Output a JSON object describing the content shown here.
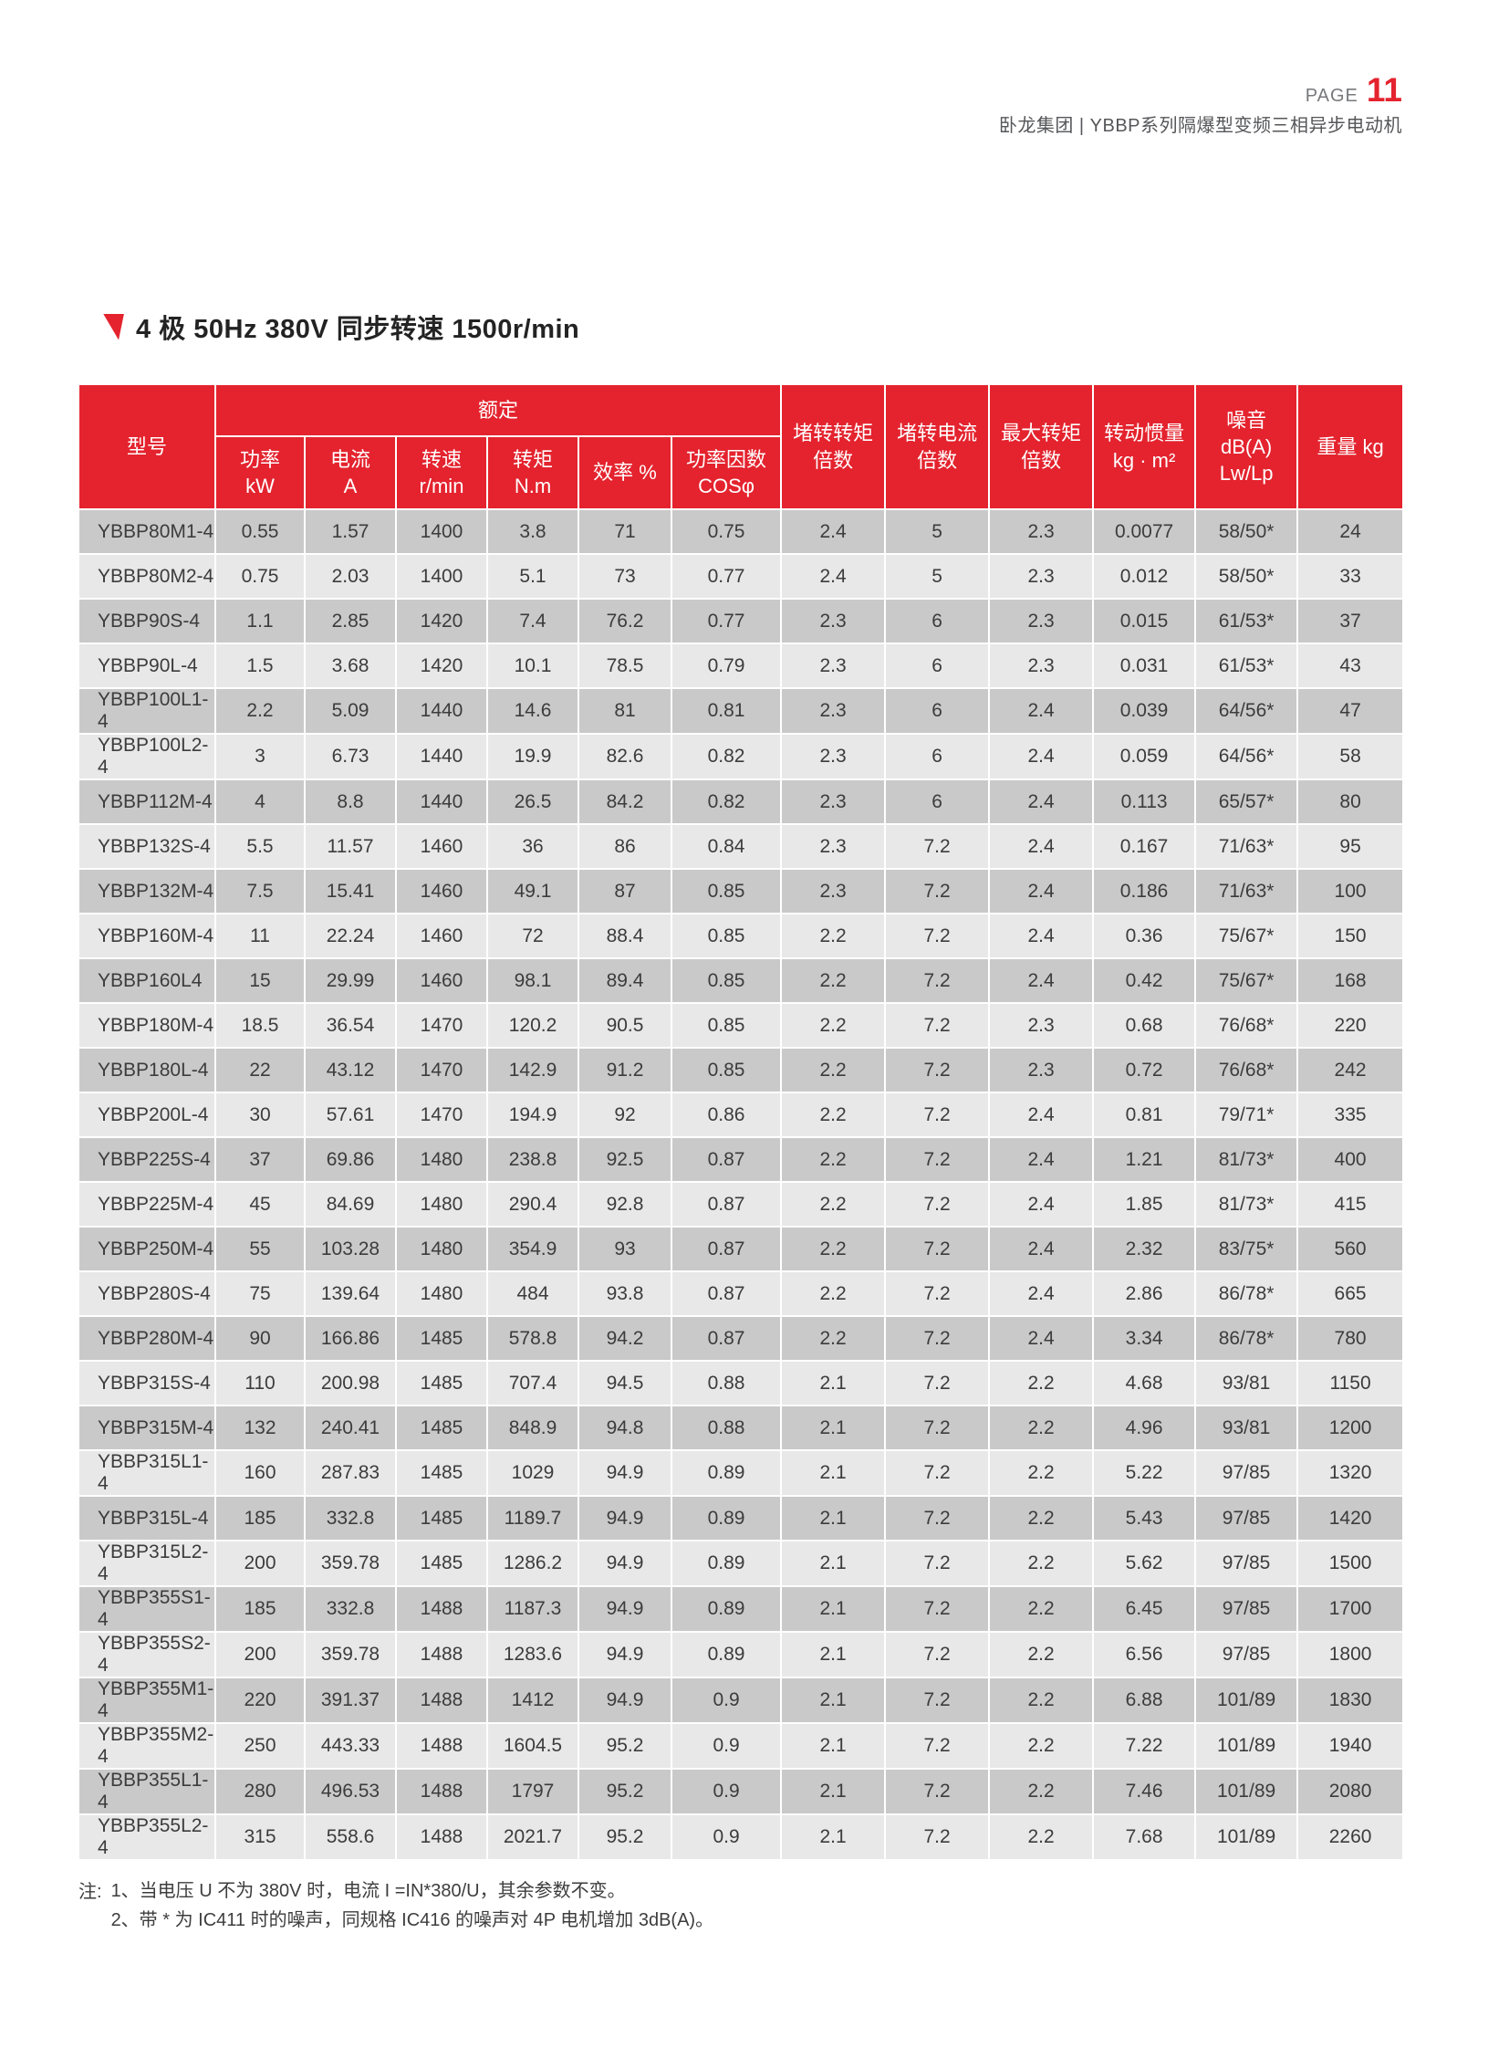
{
  "page_header": {
    "page_label": "PAGE",
    "page_number": "11",
    "subtitle": "卧龙集团 | YBBP系列隔爆型变频三相异步电动机"
  },
  "section_title": "4 极 50Hz 380V 同步转速 1500r/min",
  "table": {
    "header": {
      "model": "型号",
      "rated_group": "额定",
      "sub_headers": [
        "功率\nkW",
        "电流\nA",
        "转速\nr/min",
        "转矩\nN.m",
        "效率 %",
        "功率因数\nCOSφ"
      ],
      "span_headers": [
        "堵转转矩\n倍数",
        "堵转电流\n倍数",
        "最大转矩\n倍数",
        "转动惯量\nkg · m²",
        "噪音\ndB(A)\nLw/Lp",
        "重量 kg"
      ]
    },
    "rows": [
      [
        "YBBP80M1-4",
        "0.55",
        "1.57",
        "1400",
        "3.8",
        "71",
        "0.75",
        "2.4",
        "5",
        "2.3",
        "0.0077",
        "58/50*",
        "24"
      ],
      [
        "YBBP80M2-4",
        "0.75",
        "2.03",
        "1400",
        "5.1",
        "73",
        "0.77",
        "2.4",
        "5",
        "2.3",
        "0.012",
        "58/50*",
        "33"
      ],
      [
        "YBBP90S-4",
        "1.1",
        "2.85",
        "1420",
        "7.4",
        "76.2",
        "0.77",
        "2.3",
        "6",
        "2.3",
        "0.015",
        "61/53*",
        "37"
      ],
      [
        "YBBP90L-4",
        "1.5",
        "3.68",
        "1420",
        "10.1",
        "78.5",
        "0.79",
        "2.3",
        "6",
        "2.3",
        "0.031",
        "61/53*",
        "43"
      ],
      [
        "YBBP100L1-4",
        "2.2",
        "5.09",
        "1440",
        "14.6",
        "81",
        "0.81",
        "2.3",
        "6",
        "2.4",
        "0.039",
        "64/56*",
        "47"
      ],
      [
        "YBBP100L2-4",
        "3",
        "6.73",
        "1440",
        "19.9",
        "82.6",
        "0.82",
        "2.3",
        "6",
        "2.4",
        "0.059",
        "64/56*",
        "58"
      ],
      [
        "YBBP112M-4",
        "4",
        "8.8",
        "1440",
        "26.5",
        "84.2",
        "0.82",
        "2.3",
        "6",
        "2.4",
        "0.113",
        "65/57*",
        "80"
      ],
      [
        "YBBP132S-4",
        "5.5",
        "11.57",
        "1460",
        "36",
        "86",
        "0.84",
        "2.3",
        "7.2",
        "2.4",
        "0.167",
        "71/63*",
        "95"
      ],
      [
        "YBBP132M-4",
        "7.5",
        "15.41",
        "1460",
        "49.1",
        "87",
        "0.85",
        "2.3",
        "7.2",
        "2.4",
        "0.186",
        "71/63*",
        "100"
      ],
      [
        "YBBP160M-4",
        "11",
        "22.24",
        "1460",
        "72",
        "88.4",
        "0.85",
        "2.2",
        "7.2",
        "2.4",
        "0.36",
        "75/67*",
        "150"
      ],
      [
        "YBBP160L4",
        "15",
        "29.99",
        "1460",
        "98.1",
        "89.4",
        "0.85",
        "2.2",
        "7.2",
        "2.4",
        "0.42",
        "75/67*",
        "168"
      ],
      [
        "YBBP180M-4",
        "18.5",
        "36.54",
        "1470",
        "120.2",
        "90.5",
        "0.85",
        "2.2",
        "7.2",
        "2.3",
        "0.68",
        "76/68*",
        "220"
      ],
      [
        "YBBP180L-4",
        "22",
        "43.12",
        "1470",
        "142.9",
        "91.2",
        "0.85",
        "2.2",
        "7.2",
        "2.3",
        "0.72",
        "76/68*",
        "242"
      ],
      [
        "YBBP200L-4",
        "30",
        "57.61",
        "1470",
        "194.9",
        "92",
        "0.86",
        "2.2",
        "7.2",
        "2.4",
        "0.81",
        "79/71*",
        "335"
      ],
      [
        "YBBP225S-4",
        "37",
        "69.86",
        "1480",
        "238.8",
        "92.5",
        "0.87",
        "2.2",
        "7.2",
        "2.4",
        "1.21",
        "81/73*",
        "400"
      ],
      [
        "YBBP225M-4",
        "45",
        "84.69",
        "1480",
        "290.4",
        "92.8",
        "0.87",
        "2.2",
        "7.2",
        "2.4",
        "1.85",
        "81/73*",
        "415"
      ],
      [
        "YBBP250M-4",
        "55",
        "103.28",
        "1480",
        "354.9",
        "93",
        "0.87",
        "2.2",
        "7.2",
        "2.4",
        "2.32",
        "83/75*",
        "560"
      ],
      [
        "YBBP280S-4",
        "75",
        "139.64",
        "1480",
        "484",
        "93.8",
        "0.87",
        "2.2",
        "7.2",
        "2.4",
        "2.86",
        "86/78*",
        "665"
      ],
      [
        "YBBP280M-4",
        "90",
        "166.86",
        "1485",
        "578.8",
        "94.2",
        "0.87",
        "2.2",
        "7.2",
        "2.4",
        "3.34",
        "86/78*",
        "780"
      ],
      [
        "YBBP315S-4",
        "110",
        "200.98",
        "1485",
        "707.4",
        "94.5",
        "0.88",
        "2.1",
        "7.2",
        "2.2",
        "4.68",
        "93/81",
        "1150"
      ],
      [
        "YBBP315M-4",
        "132",
        "240.41",
        "1485",
        "848.9",
        "94.8",
        "0.88",
        "2.1",
        "7.2",
        "2.2",
        "4.96",
        "93/81",
        "1200"
      ],
      [
        "YBBP315L1-4",
        "160",
        "287.83",
        "1485",
        "1029",
        "94.9",
        "0.89",
        "2.1",
        "7.2",
        "2.2",
        "5.22",
        "97/85",
        "1320"
      ],
      [
        "YBBP315L-4",
        "185",
        "332.8",
        "1485",
        "1189.7",
        "94.9",
        "0.89",
        "2.1",
        "7.2",
        "2.2",
        "5.43",
        "97/85",
        "1420"
      ],
      [
        "YBBP315L2-4",
        "200",
        "359.78",
        "1485",
        "1286.2",
        "94.9",
        "0.89",
        "2.1",
        "7.2",
        "2.2",
        "5.62",
        "97/85",
        "1500"
      ],
      [
        "YBBP355S1-4",
        "185",
        "332.8",
        "1488",
        "1187.3",
        "94.9",
        "0.89",
        "2.1",
        "7.2",
        "2.2",
        "6.45",
        "97/85",
        "1700"
      ],
      [
        "YBBP355S2-4",
        "200",
        "359.78",
        "1488",
        "1283.6",
        "94.9",
        "0.89",
        "2.1",
        "7.2",
        "2.2",
        "6.56",
        "97/85",
        "1800"
      ],
      [
        "YBBP355M1-4",
        "220",
        "391.37",
        "1488",
        "1412",
        "94.9",
        "0.9",
        "2.1",
        "7.2",
        "2.2",
        "6.88",
        "101/89",
        "1830"
      ],
      [
        "YBBP355M2-4",
        "250",
        "443.33",
        "1488",
        "1604.5",
        "95.2",
        "0.9",
        "2.1",
        "7.2",
        "2.2",
        "7.22",
        "101/89",
        "1940"
      ],
      [
        "YBBP355L1-4",
        "280",
        "496.53",
        "1488",
        "1797",
        "95.2",
        "0.9",
        "2.1",
        "7.2",
        "2.2",
        "7.46",
        "101/89",
        "2080"
      ],
      [
        "YBBP355L2-4",
        "315",
        "558.6",
        "1488",
        "2021.7",
        "95.2",
        "0.9",
        "2.1",
        "7.2",
        "2.2",
        "7.68",
        "101/89",
        "2260"
      ]
    ]
  },
  "notes": {
    "label": "注:",
    "lines": [
      "1、当电压 U 不为 380V 时，电流 I =IN*380/U，其余参数不变。",
      "2、带 * 为 IC411 时的噪声，同规格 IC416 的噪声对 4P 电机增加 3dB(A)。"
    ]
  },
  "colors": {
    "accent_red": "#e4232e",
    "row_dark": "#c9c9c9",
    "row_light": "#e8e8e8",
    "header_text": "#ffffff",
    "body_text": "#3c3c3c"
  }
}
